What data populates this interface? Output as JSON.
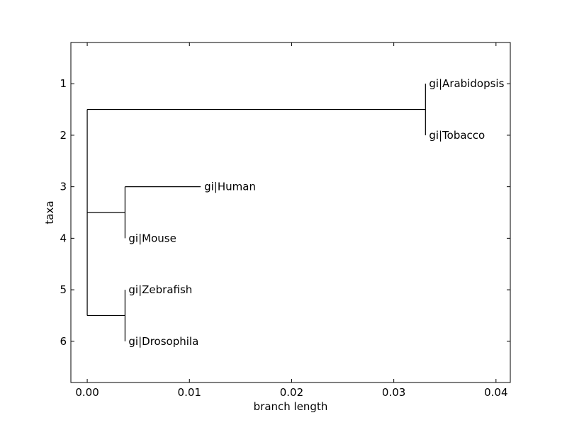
{
  "chart_data": {
    "type": "dendrogram",
    "title": "",
    "xlabel": "branch length",
    "ylabel": "taxa",
    "xlim": [
      -0.0016,
      0.0414
    ],
    "ylim": [
      6.8,
      0.2
    ],
    "xticks": [
      0.0,
      0.01,
      0.02,
      0.03,
      0.04
    ],
    "xtick_labels": [
      "0.00",
      "0.01",
      "0.02",
      "0.03",
      "0.04"
    ],
    "yticks": [
      1,
      2,
      3,
      4,
      5,
      6
    ],
    "ytick_labels": [
      "1",
      "2",
      "3",
      "4",
      "5",
      "6"
    ],
    "grid": false,
    "leaves": [
      {
        "name": "gi|Arabidopsis",
        "x": 0.0331,
        "y": 1
      },
      {
        "name": "gi|Tobacco",
        "x": 0.0331,
        "y": 2
      },
      {
        "name": "gi|Human",
        "x": 0.0111,
        "y": 3
      },
      {
        "name": "gi|Mouse",
        "x": 0.0037,
        "y": 4
      },
      {
        "name": "gi|Zebrafish",
        "x": 0.0037,
        "y": 5
      },
      {
        "name": "gi|Drosophila",
        "x": 0.0037,
        "y": 6
      }
    ],
    "branches": [
      {
        "x_start": 0.0,
        "x_end": 0.0331,
        "y": 1.5
      },
      {
        "x_start": 0.0331,
        "x_end": 0.0331,
        "y": 1
      },
      {
        "x_start": 0.0331,
        "x_end": 0.0331,
        "y": 2
      },
      {
        "x_start": 0.0,
        "x_end": 0.0037,
        "y": 3.5
      },
      {
        "x_start": 0.0037,
        "x_end": 0.0111,
        "y": 3
      },
      {
        "x_start": 0.0037,
        "x_end": 0.0037,
        "y": 4
      },
      {
        "x_start": 0.0,
        "x_end": 0.0037,
        "y": 5.5
      },
      {
        "x_start": 0.0037,
        "x_end": 0.0037,
        "y": 5
      },
      {
        "x_start": 0.0037,
        "x_end": 0.0037,
        "y": 6
      }
    ],
    "clades": [
      {
        "x": 0.0,
        "y_min": 1.5,
        "y_max": 5.5
      },
      {
        "x": 0.0331,
        "y_min": 1,
        "y_max": 2
      },
      {
        "x": 0.0037,
        "y_min": 3,
        "y_max": 4
      },
      {
        "x": 0.0037,
        "y_min": 5,
        "y_max": 6
      }
    ],
    "colors": {
      "line": "#000000",
      "background": "#ffffff"
    }
  }
}
